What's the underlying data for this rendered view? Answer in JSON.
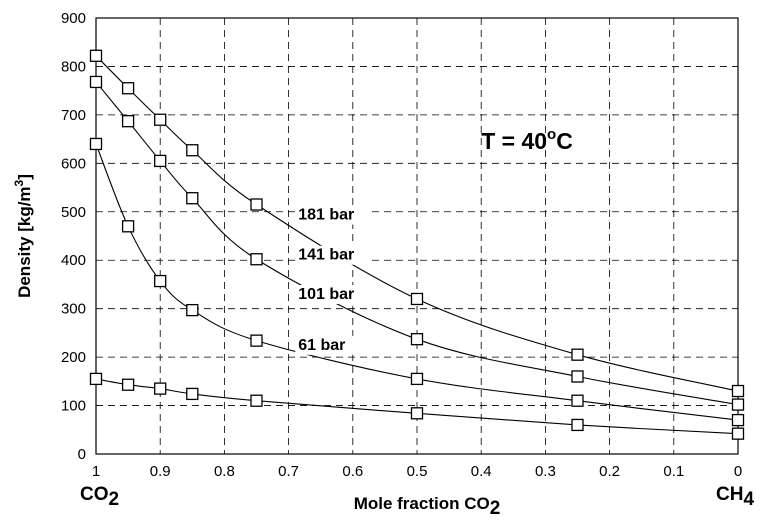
{
  "chart_data": {
    "type": "line",
    "ylabel": "Density [kg/m3]",
    "ylabel_main": "Density [kg/m",
    "ylabel_sup": "3",
    "ylabel_end": "]",
    "xlabel_main": "Mole fraction CO",
    "xlabel_sub": "2",
    "x_left_label_main": "CO",
    "x_left_label_sub": "2",
    "x_right_label_main": "CH",
    "x_right_label_sub": "4",
    "annotation_main": "T = 40",
    "annotation_sup": "o",
    "annotation_end": "C",
    "xlim": [
      1,
      0
    ],
    "ylim": [
      0,
      900
    ],
    "x_ticks": [
      "1",
      "0.9",
      "0.8",
      "0.7",
      "0.6",
      "0.5",
      "0.4",
      "0.3",
      "0.2",
      "0.1",
      "0"
    ],
    "y_ticks": [
      "0",
      "100",
      "200",
      "300",
      "400",
      "500",
      "600",
      "700",
      "800",
      "900"
    ],
    "grid": true,
    "series": [
      {
        "name": "181 bar",
        "x": [
          1,
          0.95,
          0.9,
          0.85,
          0.75,
          0.5,
          0.25,
          0
        ],
        "y": [
          822,
          755,
          690,
          627,
          515,
          320,
          205,
          130
        ]
      },
      {
        "name": "141 bar",
        "x": [
          1,
          0.95,
          0.9,
          0.85,
          0.75,
          0.5,
          0.25,
          0
        ],
        "y": [
          768,
          687,
          605,
          528,
          402,
          237,
          160,
          102
        ]
      },
      {
        "name": "101 bar",
        "x": [
          1,
          0.95,
          0.9,
          0.85,
          0.75,
          0.5,
          0.25,
          0
        ],
        "y": [
          640,
          470,
          357,
          297,
          234,
          155,
          110,
          70
        ]
      },
      {
        "name": "61 bar",
        "x": [
          1,
          0.95,
          0.9,
          0.85,
          0.75,
          0.5,
          0.25,
          0
        ],
        "y": [
          155,
          143,
          135,
          124,
          110,
          84,
          60,
          42
        ]
      }
    ]
  }
}
